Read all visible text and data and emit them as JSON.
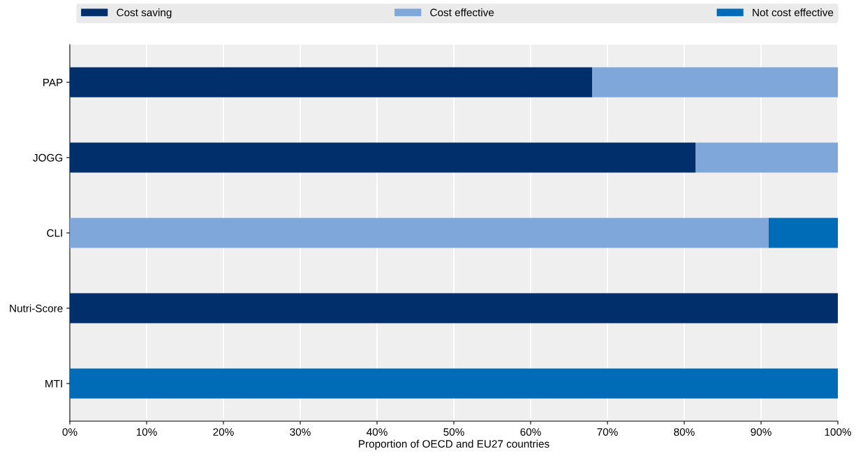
{
  "chart_data": {
    "type": "bar",
    "orientation": "horizontal",
    "stacked": true,
    "xlabel": "Proportion of OECD and EU27 countries",
    "categories": [
      "PAP",
      "JOGG",
      "CLI",
      "Nutri-Score",
      "MTI"
    ],
    "series": [
      {
        "name": "Cost saving",
        "color": "#002f6c",
        "values": [
          68,
          81.5,
          0,
          100,
          0
        ]
      },
      {
        "name": "Cost effective",
        "color": "#7fa7d9",
        "values": [
          32,
          18.5,
          91,
          0,
          0
        ]
      },
      {
        "name": "Not cost effective",
        "color": "#006bb6",
        "values": [
          0,
          0,
          9,
          0,
          100
        ]
      }
    ],
    "xlim": [
      0,
      100
    ],
    "xticks": [
      {
        "value": 0,
        "label": "0%"
      },
      {
        "value": 10,
        "label": "10%"
      },
      {
        "value": 20,
        "label": "20%"
      },
      {
        "value": 30,
        "label": "30%"
      },
      {
        "value": 40,
        "label": "40%"
      },
      {
        "value": 50,
        "label": "50%"
      },
      {
        "value": 60,
        "label": "60%"
      },
      {
        "value": 70,
        "label": "70%"
      },
      {
        "value": 80,
        "label": "80%"
      },
      {
        "value": 90,
        "label": "90%"
      },
      {
        "value": 100,
        "label": "100%"
      }
    ],
    "grid": "x",
    "legend": "top"
  }
}
